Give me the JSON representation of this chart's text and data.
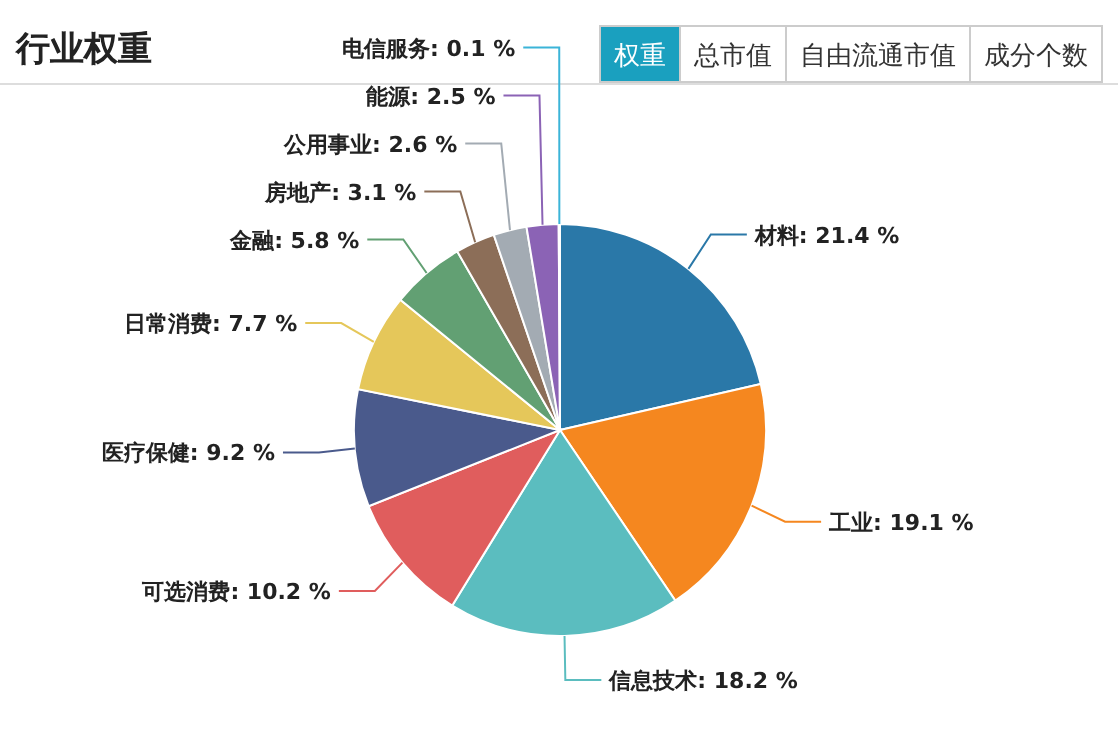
{
  "chart_data": {
    "type": "pie",
    "title": "行业权重",
    "annotations": [
      "权重",
      "总市值",
      "自由流通市值",
      "成分个数"
    ],
    "categories": [
      "材料",
      "工业",
      "信息技术",
      "可选消费",
      "医疗保健",
      "日常消费",
      "金融",
      "房地产",
      "公用事业",
      "能源",
      "电信服务"
    ],
    "values": [
      21.4,
      19.1,
      18.2,
      10.2,
      9.2,
      7.7,
      5.8,
      3.1,
      2.6,
      2.5,
      0.1
    ],
    "value_labels": [
      "21.4 %",
      "19.1 %",
      "18.2 %",
      "10.2 %",
      "9.2 %",
      "7.7 %",
      "5.8 %",
      "3.1 %",
      "2.6 %",
      "2.5 %",
      "0.1 %"
    ],
    "colors": [
      "#2a78a8",
      "#f5871f",
      "#5bbdbf",
      "#e05d5d",
      "#4a5a8c",
      "#e5c75a",
      "#62a073",
      "#8c6e58",
      "#a3abb3",
      "#8b63b5",
      "#3bb4d8"
    ]
  }
}
